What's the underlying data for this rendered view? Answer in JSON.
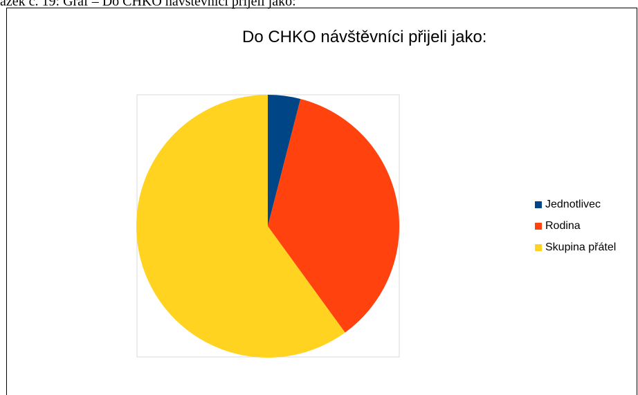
{
  "caption": "ázek č. 19: Graf – Do CHKO návštěvníci přijeli jako:",
  "chart_data": {
    "type": "pie",
    "title": "Do CHKO návštěvníci přijeli jako:",
    "categories": [
      "Jednotlivec",
      "Rodina",
      "Skupina přátel"
    ],
    "values": [
      4,
      36,
      60
    ],
    "colors": [
      "#004586",
      "#ff420e",
      "#ffd320"
    ],
    "legend_position": "right"
  }
}
